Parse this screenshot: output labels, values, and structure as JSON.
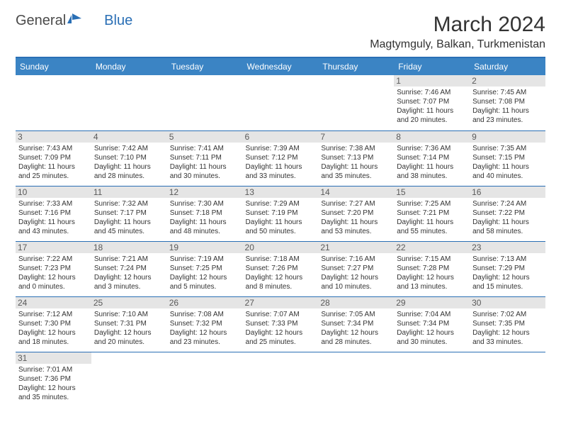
{
  "logo": {
    "text_general": "General",
    "text_blue": "Blue"
  },
  "header": {
    "month_title": "March 2024",
    "location": "Magtymguly, Balkan, Turkmenistan"
  },
  "colors": {
    "header_bg": "#3b84c4",
    "header_text": "#ffffff",
    "rule": "#2a6fb5",
    "daynum_bg": "#e5e5e5",
    "text": "#333333",
    "background": "#ffffff"
  },
  "typography": {
    "title_fontsize": 30,
    "location_fontsize": 16,
    "weekday_fontsize": 12,
    "cell_fontsize": 10
  },
  "weekdays": [
    "Sunday",
    "Monday",
    "Tuesday",
    "Wednesday",
    "Thursday",
    "Friday",
    "Saturday"
  ],
  "weeks": [
    [
      {
        "day": "",
        "sunrise": "",
        "sunset": "",
        "daylight": ""
      },
      {
        "day": "",
        "sunrise": "",
        "sunset": "",
        "daylight": ""
      },
      {
        "day": "",
        "sunrise": "",
        "sunset": "",
        "daylight": ""
      },
      {
        "day": "",
        "sunrise": "",
        "sunset": "",
        "daylight": ""
      },
      {
        "day": "",
        "sunrise": "",
        "sunset": "",
        "daylight": ""
      },
      {
        "day": "1",
        "sunrise": "Sunrise: 7:46 AM",
        "sunset": "Sunset: 7:07 PM",
        "daylight": "Daylight: 11 hours and 20 minutes."
      },
      {
        "day": "2",
        "sunrise": "Sunrise: 7:45 AM",
        "sunset": "Sunset: 7:08 PM",
        "daylight": "Daylight: 11 hours and 23 minutes."
      }
    ],
    [
      {
        "day": "3",
        "sunrise": "Sunrise: 7:43 AM",
        "sunset": "Sunset: 7:09 PM",
        "daylight": "Daylight: 11 hours and 25 minutes."
      },
      {
        "day": "4",
        "sunrise": "Sunrise: 7:42 AM",
        "sunset": "Sunset: 7:10 PM",
        "daylight": "Daylight: 11 hours and 28 minutes."
      },
      {
        "day": "5",
        "sunrise": "Sunrise: 7:41 AM",
        "sunset": "Sunset: 7:11 PM",
        "daylight": "Daylight: 11 hours and 30 minutes."
      },
      {
        "day": "6",
        "sunrise": "Sunrise: 7:39 AM",
        "sunset": "Sunset: 7:12 PM",
        "daylight": "Daylight: 11 hours and 33 minutes."
      },
      {
        "day": "7",
        "sunrise": "Sunrise: 7:38 AM",
        "sunset": "Sunset: 7:13 PM",
        "daylight": "Daylight: 11 hours and 35 minutes."
      },
      {
        "day": "8",
        "sunrise": "Sunrise: 7:36 AM",
        "sunset": "Sunset: 7:14 PM",
        "daylight": "Daylight: 11 hours and 38 minutes."
      },
      {
        "day": "9",
        "sunrise": "Sunrise: 7:35 AM",
        "sunset": "Sunset: 7:15 PM",
        "daylight": "Daylight: 11 hours and 40 minutes."
      }
    ],
    [
      {
        "day": "10",
        "sunrise": "Sunrise: 7:33 AM",
        "sunset": "Sunset: 7:16 PM",
        "daylight": "Daylight: 11 hours and 43 minutes."
      },
      {
        "day": "11",
        "sunrise": "Sunrise: 7:32 AM",
        "sunset": "Sunset: 7:17 PM",
        "daylight": "Daylight: 11 hours and 45 minutes."
      },
      {
        "day": "12",
        "sunrise": "Sunrise: 7:30 AM",
        "sunset": "Sunset: 7:18 PM",
        "daylight": "Daylight: 11 hours and 48 minutes."
      },
      {
        "day": "13",
        "sunrise": "Sunrise: 7:29 AM",
        "sunset": "Sunset: 7:19 PM",
        "daylight": "Daylight: 11 hours and 50 minutes."
      },
      {
        "day": "14",
        "sunrise": "Sunrise: 7:27 AM",
        "sunset": "Sunset: 7:20 PM",
        "daylight": "Daylight: 11 hours and 53 minutes."
      },
      {
        "day": "15",
        "sunrise": "Sunrise: 7:25 AM",
        "sunset": "Sunset: 7:21 PM",
        "daylight": "Daylight: 11 hours and 55 minutes."
      },
      {
        "day": "16",
        "sunrise": "Sunrise: 7:24 AM",
        "sunset": "Sunset: 7:22 PM",
        "daylight": "Daylight: 11 hours and 58 minutes."
      }
    ],
    [
      {
        "day": "17",
        "sunrise": "Sunrise: 7:22 AM",
        "sunset": "Sunset: 7:23 PM",
        "daylight": "Daylight: 12 hours and 0 minutes."
      },
      {
        "day": "18",
        "sunrise": "Sunrise: 7:21 AM",
        "sunset": "Sunset: 7:24 PM",
        "daylight": "Daylight: 12 hours and 3 minutes."
      },
      {
        "day": "19",
        "sunrise": "Sunrise: 7:19 AM",
        "sunset": "Sunset: 7:25 PM",
        "daylight": "Daylight: 12 hours and 5 minutes."
      },
      {
        "day": "20",
        "sunrise": "Sunrise: 7:18 AM",
        "sunset": "Sunset: 7:26 PM",
        "daylight": "Daylight: 12 hours and 8 minutes."
      },
      {
        "day": "21",
        "sunrise": "Sunrise: 7:16 AM",
        "sunset": "Sunset: 7:27 PM",
        "daylight": "Daylight: 12 hours and 10 minutes."
      },
      {
        "day": "22",
        "sunrise": "Sunrise: 7:15 AM",
        "sunset": "Sunset: 7:28 PM",
        "daylight": "Daylight: 12 hours and 13 minutes."
      },
      {
        "day": "23",
        "sunrise": "Sunrise: 7:13 AM",
        "sunset": "Sunset: 7:29 PM",
        "daylight": "Daylight: 12 hours and 15 minutes."
      }
    ],
    [
      {
        "day": "24",
        "sunrise": "Sunrise: 7:12 AM",
        "sunset": "Sunset: 7:30 PM",
        "daylight": "Daylight: 12 hours and 18 minutes."
      },
      {
        "day": "25",
        "sunrise": "Sunrise: 7:10 AM",
        "sunset": "Sunset: 7:31 PM",
        "daylight": "Daylight: 12 hours and 20 minutes."
      },
      {
        "day": "26",
        "sunrise": "Sunrise: 7:08 AM",
        "sunset": "Sunset: 7:32 PM",
        "daylight": "Daylight: 12 hours and 23 minutes."
      },
      {
        "day": "27",
        "sunrise": "Sunrise: 7:07 AM",
        "sunset": "Sunset: 7:33 PM",
        "daylight": "Daylight: 12 hours and 25 minutes."
      },
      {
        "day": "28",
        "sunrise": "Sunrise: 7:05 AM",
        "sunset": "Sunset: 7:34 PM",
        "daylight": "Daylight: 12 hours and 28 minutes."
      },
      {
        "day": "29",
        "sunrise": "Sunrise: 7:04 AM",
        "sunset": "Sunset: 7:34 PM",
        "daylight": "Daylight: 12 hours and 30 minutes."
      },
      {
        "day": "30",
        "sunrise": "Sunrise: 7:02 AM",
        "sunset": "Sunset: 7:35 PM",
        "daylight": "Daylight: 12 hours and 33 minutes."
      }
    ],
    [
      {
        "day": "31",
        "sunrise": "Sunrise: 7:01 AM",
        "sunset": "Sunset: 7:36 PM",
        "daylight": "Daylight: 12 hours and 35 minutes."
      },
      {
        "day": "",
        "sunrise": "",
        "sunset": "",
        "daylight": ""
      },
      {
        "day": "",
        "sunrise": "",
        "sunset": "",
        "daylight": ""
      },
      {
        "day": "",
        "sunrise": "",
        "sunset": "",
        "daylight": ""
      },
      {
        "day": "",
        "sunrise": "",
        "sunset": "",
        "daylight": ""
      },
      {
        "day": "",
        "sunrise": "",
        "sunset": "",
        "daylight": ""
      },
      {
        "day": "",
        "sunrise": "",
        "sunset": "",
        "daylight": ""
      }
    ]
  ]
}
